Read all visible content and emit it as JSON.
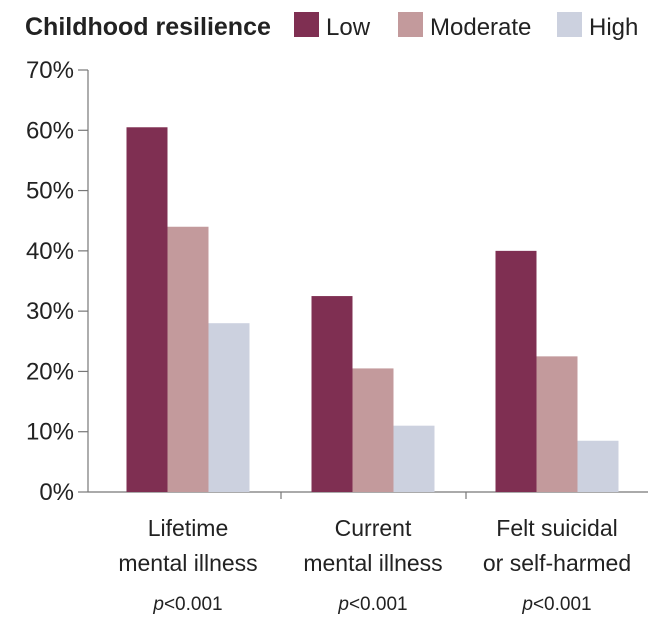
{
  "chart_data": {
    "type": "bar",
    "legend": {
      "title": "Childhood resilience",
      "placement": "top"
    },
    "categories": [
      [
        "Lifetime",
        "mental illness"
      ],
      [
        "Current",
        "mental illness"
      ],
      [
        "Felt suicidal",
        "or self-harmed"
      ]
    ],
    "category_notes": [
      "p<0.001",
      "p<0.001",
      "p<0.001"
    ],
    "series": [
      {
        "name": "Low",
        "color": "#7f2f52",
        "values": [
          60.5,
          32.5,
          40
        ]
      },
      {
        "name": "Moderate",
        "color": "#c39a9c",
        "values": [
          44,
          20.5,
          22.5
        ]
      },
      {
        "name": "High",
        "color": "#ccd1df",
        "values": [
          28,
          11,
          8.5
        ]
      }
    ],
    "y_ticks": [
      "0%",
      "10%",
      "20%",
      "30%",
      "40%",
      "50%",
      "60%",
      "70%"
    ],
    "ylim": [
      0,
      70
    ],
    "grid": false
  }
}
